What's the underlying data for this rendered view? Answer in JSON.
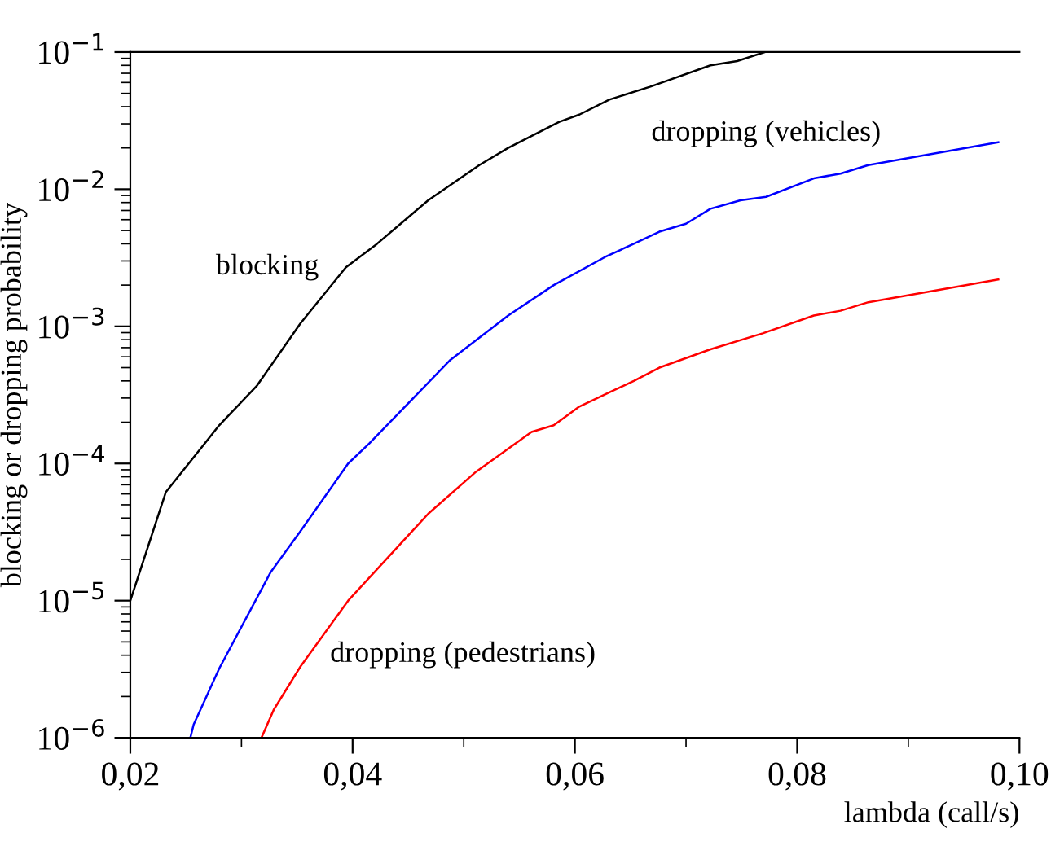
{
  "chart_data": {
    "type": "line",
    "xlabel": "lambda (call/s)",
    "ylabel": "blocking or dropping probability",
    "log": "y",
    "grid": false,
    "legend": false,
    "marker": "none",
    "line_style": "solid",
    "xlim": [
      0.02,
      0.1
    ],
    "ylim": [
      1e-06,
      0.1
    ],
    "xticks": [
      {
        "value": 0.02,
        "label": "0,02"
      },
      {
        "value": 0.04,
        "label": "0,04"
      },
      {
        "value": 0.06,
        "label": "0,06"
      },
      {
        "value": 0.08,
        "label": "0,08"
      },
      {
        "value": 0.1,
        "label": "0,10"
      }
    ],
    "yticks": [
      {
        "value": 1e-06,
        "label": "10$^{−6}$"
      },
      {
        "value": 1e-05,
        "label": "10$^{−5}$"
      },
      {
        "value": 0.0001,
        "label": "10$^{−4}$"
      },
      {
        "value": 0.001,
        "label": "10$^{−3}$"
      },
      {
        "value": 0.01,
        "label": "10$^{−2}$"
      },
      {
        "value": 0.1,
        "label": "10$^{−1}$"
      }
    ],
    "series": [
      {
        "name": "blocking",
        "color": "#000000",
        "x": [
          0.02,
          0.0232,
          0.028,
          0.0314,
          0.0353,
          0.0394,
          0.0422,
          0.0468,
          0.0514,
          0.054,
          0.0586,
          0.0604,
          0.0631,
          0.0668,
          0.0722,
          0.0746,
          0.0771
        ],
        "values": [
          1e-05,
          6.2e-05,
          0.00019,
          0.00037,
          0.00105,
          0.0027,
          0.004,
          0.0083,
          0.015,
          0.02,
          0.031,
          0.035,
          0.045,
          0.056,
          0.08,
          0.086,
          0.1
        ]
      },
      {
        "name": "dropping (vehicles)",
        "color": "#0000ff",
        "x": [
          0.0254,
          0.0257,
          0.028,
          0.0326,
          0.0353,
          0.0396,
          0.0415,
          0.0488,
          0.054,
          0.0581,
          0.0627,
          0.0653,
          0.0676,
          0.07,
          0.0722,
          0.0749,
          0.0772,
          0.0815,
          0.0839,
          0.0864,
          0.0981
        ],
        "values": [
          1e-06,
          1.25e-06,
          3.2e-06,
          1.6e-05,
          3.2e-05,
          0.0001,
          0.00014,
          0.00057,
          0.0012,
          0.002,
          0.0032,
          0.004,
          0.0049,
          0.0056,
          0.0072,
          0.0083,
          0.0088,
          0.012,
          0.013,
          0.015,
          0.022
        ]
      },
      {
        "name": "dropping (pedestrians)",
        "color": "#ff0000",
        "x": [
          0.0318,
          0.0329,
          0.0353,
          0.0396,
          0.0468,
          0.0511,
          0.0561,
          0.0581,
          0.0604,
          0.0631,
          0.0653,
          0.0676,
          0.0722,
          0.0769,
          0.0815,
          0.0839,
          0.0864,
          0.0981
        ],
        "values": [
          1e-06,
          1.6e-06,
          3.3e-06,
          1e-05,
          4.3e-05,
          8.7e-05,
          0.00017,
          0.00019,
          0.00026,
          0.00033,
          0.0004,
          0.0005,
          0.00068,
          0.00089,
          0.0012,
          0.0013,
          0.0015,
          0.0022
        ]
      }
    ]
  }
}
